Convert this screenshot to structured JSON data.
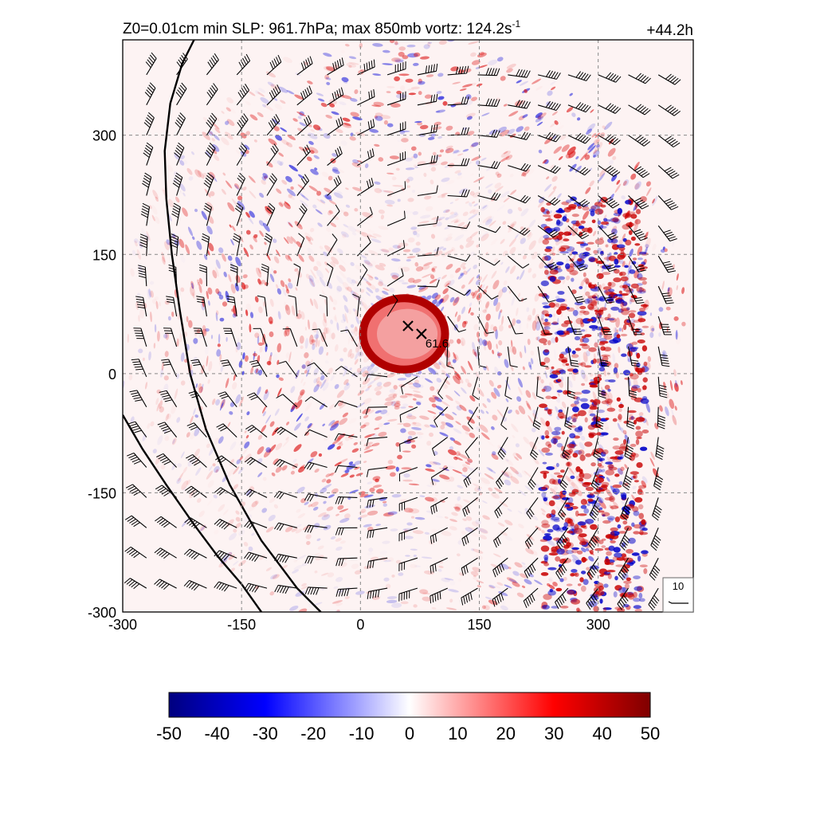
{
  "header": {
    "title_main": "Z0=0.01cm  min SLP: 961.7hPa; max 850mb vortz: 124.2s",
    "title_sup": "-1",
    "time_label": "+44.2h"
  },
  "chart_data": {
    "type": "heatmap",
    "xlim": [
      -300,
      420
    ],
    "ylim": [
      -300,
      420
    ],
    "x_ticks": [
      -300,
      -150,
      0,
      150,
      300
    ],
    "y_ticks": [
      -300,
      -150,
      0,
      150,
      300
    ],
    "x_tick_labels": [
      "-300",
      "-150",
      "0",
      "150",
      "300"
    ],
    "y_tick_labels": [
      "-300",
      "-150",
      "0",
      "150",
      "300"
    ],
    "grid": true,
    "grid_style": "dashed",
    "center_markers": [
      {
        "x": 60,
        "y": 60
      },
      {
        "x": 77,
        "y": 50
      }
    ],
    "center_value_label": "61.6",
    "reference_barb_label": "10",
    "colorbar": {
      "min": -50,
      "max": 50,
      "ticks": [
        -50,
        -40,
        -30,
        -20,
        -10,
        0,
        10,
        20,
        30,
        40,
        50
      ],
      "tick_labels": [
        "-50",
        "-40",
        "-30",
        "-20",
        "-10",
        "0",
        "10",
        "20",
        "30",
        "40",
        "50"
      ],
      "stops": [
        "#00007f",
        "#0000ff",
        "#ffffff",
        "#ff0000",
        "#7f0000"
      ]
    },
    "intense_core": {
      "center_x": 55,
      "center_y": 50,
      "radius_km": 45
    },
    "rainband_max_radius_km": 320,
    "coastlines": [
      [
        [
          -210,
          420
        ],
        [
          -225,
          390
        ],
        [
          -240,
          340
        ],
        [
          -247,
          280
        ],
        [
          -245,
          220
        ],
        [
          -238,
          150
        ],
        [
          -228,
          80
        ],
        [
          -215,
          0
        ],
        [
          -195,
          -70
        ],
        [
          -165,
          -140
        ],
        [
          -125,
          -210
        ],
        [
          -80,
          -270
        ],
        [
          -50,
          -300
        ]
      ],
      [
        [
          -300,
          -52
        ],
        [
          -275,
          -95
        ],
        [
          -245,
          -140
        ],
        [
          -210,
          -190
        ],
        [
          -180,
          -230
        ],
        [
          -150,
          -265
        ],
        [
          -125,
          -300
        ]
      ]
    ]
  }
}
